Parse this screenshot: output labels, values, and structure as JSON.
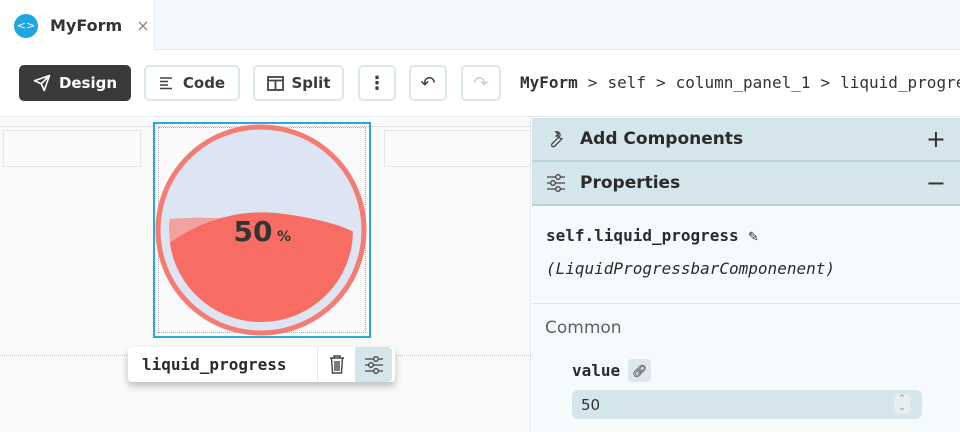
{
  "tab": {
    "label": "MyForm",
    "icon": "form-file-icon",
    "close": "×"
  },
  "toolbar": {
    "design": "Design",
    "code": "Code",
    "split": "Split",
    "more": "⋮",
    "undo": "↶",
    "redo": "↷"
  },
  "breadcrumb": {
    "root": "MyForm",
    "items": [
      "self",
      "column_panel_1",
      "liquid_progress"
    ],
    "sep": ">"
  },
  "canvas": {
    "component_name": "liquid_progress",
    "value": 50,
    "percent_label": "50",
    "percent_sign": "%",
    "colors": {
      "liquid": "#f76d63",
      "background": "#dde4f2",
      "ring": "#f57c72",
      "selection": "#29a8e0"
    }
  },
  "panel": {
    "add_components": "Add Components",
    "add_toggle": "+",
    "properties": "Properties",
    "properties_toggle": "−",
    "component_path": "self.liquid_progress",
    "component_type": "(LiquidProgressbarComponenent)",
    "section": "Common",
    "value_label": "value",
    "value": "50"
  }
}
